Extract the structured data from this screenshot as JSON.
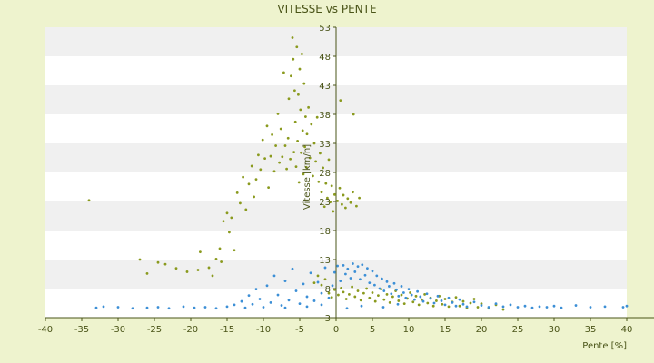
{
  "chart_data": {
    "type": "scatter",
    "title": "VITESSE vs PENTE",
    "xlabel": "Pente [%]",
    "ylabel": "Vitesse [km/h]",
    "xlim": [
      -40,
      40
    ],
    "ylim": [
      3,
      53
    ],
    "x_ticks": [
      "-40",
      "-35",
      "-30",
      "-25",
      "-20",
      "-15",
      "-10",
      "-5",
      "0",
      "5",
      "10",
      "15",
      "20",
      "25",
      "30",
      "35",
      "40"
    ],
    "y_ticks": [
      "3",
      "8",
      "13",
      "18",
      "23",
      "28",
      "33",
      "38",
      "43",
      "48",
      "53"
    ],
    "grid": "horizontal alternating bands",
    "legend": "none",
    "colors": {
      "background": "#EEF3CE",
      "plot_band_light": "#FFFFFF",
      "plot_band_dark": "#F0F0F0",
      "axis": "#4A5418",
      "series_green": "#8A9A1E",
      "series_blue": "#3C8FD6"
    },
    "series": [
      {
        "color": "#8A9A1E",
        "points": [
          [
            -34,
            23.2
          ],
          [
            -27,
            13.0
          ],
          [
            -26,
            10.6
          ],
          [
            -24.5,
            12.5
          ],
          [
            -23.5,
            12.2
          ],
          [
            -22,
            11.5
          ],
          [
            -20.5,
            10.9
          ],
          [
            -19,
            11.2
          ],
          [
            -18.7,
            14.3
          ],
          [
            -17.5,
            11.6
          ],
          [
            -17,
            10.2
          ],
          [
            -16.5,
            13.1
          ],
          [
            -16,
            14.9
          ],
          [
            -15.8,
            12.6
          ],
          [
            -15.5,
            19.6
          ],
          [
            -15,
            21.0
          ],
          [
            -14.7,
            17.7
          ],
          [
            -14.4,
            20.2
          ],
          [
            -14,
            14.6
          ],
          [
            -13.6,
            24.5
          ],
          [
            -13.2,
            22.7
          ],
          [
            -12.8,
            27.2
          ],
          [
            -12.4,
            21.6
          ],
          [
            -12,
            26.0
          ],
          [
            -11.6,
            29.1
          ],
          [
            -11.3,
            23.8
          ],
          [
            -11,
            26.8
          ],
          [
            -10.7,
            31.0
          ],
          [
            -10.4,
            28.5
          ],
          [
            -10.1,
            33.6
          ],
          [
            -9.8,
            30.4
          ],
          [
            -9.5,
            36.0
          ],
          [
            -9.3,
            25.4
          ],
          [
            -9,
            30.8
          ],
          [
            -8.8,
            34.5
          ],
          [
            -8.5,
            28.2
          ],
          [
            -8.3,
            32.6
          ],
          [
            -8,
            38.1
          ],
          [
            -7.8,
            29.7
          ],
          [
            -7.6,
            35.5
          ],
          [
            -7.4,
            30.7
          ],
          [
            -7.2,
            45.2
          ],
          [
            -7,
            32.6
          ],
          [
            -6.8,
            28.6
          ],
          [
            -6.6,
            33.9
          ],
          [
            -6.5,
            40.7
          ],
          [
            -6.3,
            30.3
          ],
          [
            -6.2,
            44.6
          ],
          [
            -6,
            51.2
          ],
          [
            -5.9,
            47.5
          ],
          [
            -5.8,
            31.5
          ],
          [
            -5.7,
            42.1
          ],
          [
            -5.6,
            36.7
          ],
          [
            -5.5,
            29.0
          ],
          [
            -5.4,
            49.6
          ],
          [
            -5.3,
            33.4
          ],
          [
            -5.2,
            41.4
          ],
          [
            -5.1,
            26.3
          ],
          [
            -5,
            45.8
          ],
          [
            -4.9,
            38.8
          ],
          [
            -4.8,
            31.4
          ],
          [
            -4.7,
            48.4
          ],
          [
            -4.6,
            35.2
          ],
          [
            -4.5,
            27.7
          ],
          [
            -4.4,
            43.3
          ],
          [
            -4.3,
            32.4
          ],
          [
            -4.2,
            37.6
          ],
          [
            -4.1,
            28.9
          ],
          [
            -4,
            34.6
          ],
          [
            -3.8,
            39.2
          ],
          [
            -3.6,
            30.5
          ],
          [
            -3.4,
            36.3
          ],
          [
            -3.2,
            27.4
          ],
          [
            -3,
            33.0
          ],
          [
            -2.8,
            29.9
          ],
          [
            -2.6,
            37.5
          ],
          [
            -2.4,
            26.4
          ],
          [
            -2.2,
            31.3
          ],
          [
            -2,
            24.6
          ],
          [
            -1.8,
            28.8
          ],
          [
            -1.6,
            22.1
          ],
          [
            -1.4,
            26.1
          ],
          [
            -1.2,
            23.6
          ],
          [
            -1,
            30.2
          ],
          [
            -0.8,
            22.9
          ],
          [
            -0.6,
            25.7
          ],
          [
            -0.4,
            21.3
          ],
          [
            -0.2,
            24.2
          ],
          [
            0.2,
            23.1
          ],
          [
            0.5,
            25.3
          ],
          [
            0.6,
            40.4
          ],
          [
            0.8,
            22.5
          ],
          [
            1,
            24.1
          ],
          [
            1.3,
            21.9
          ],
          [
            1.6,
            23.5
          ],
          [
            2,
            22.8
          ],
          [
            2.3,
            24.6
          ],
          [
            2.4,
            38.0
          ],
          [
            2.8,
            22.2
          ],
          [
            3.2,
            23.6
          ],
          [
            -1,
            7.2
          ],
          [
            -0.6,
            6.5
          ],
          [
            -0.2,
            7.8
          ],
          [
            0.3,
            6.9
          ],
          [
            0.7,
            8.1
          ],
          [
            1,
            7.4
          ],
          [
            1.4,
            6.2
          ],
          [
            1.8,
            7.0
          ],
          [
            2.2,
            8.3
          ],
          [
            2.6,
            6.6
          ],
          [
            3,
            7.6
          ],
          [
            3.4,
            6.0
          ],
          [
            3.8,
            7.2
          ],
          [
            4.2,
            8.0
          ],
          [
            4.6,
            6.4
          ],
          [
            5,
            7.3
          ],
          [
            5.4,
            5.8
          ],
          [
            5.8,
            6.8
          ],
          [
            6.2,
            7.9
          ],
          [
            6.6,
            6.1
          ],
          [
            7,
            7.0
          ],
          [
            7.4,
            5.6
          ],
          [
            7.8,
            6.6
          ],
          [
            8.2,
            7.6
          ],
          [
            8.6,
            5.9
          ],
          [
            9,
            6.9
          ],
          [
            9.4,
            5.4
          ],
          [
            9.8,
            6.3
          ],
          [
            10.2,
            7.3
          ],
          [
            10.6,
            5.7
          ],
          [
            11,
            6.7
          ],
          [
            11.4,
            5.2
          ],
          [
            11.8,
            6.1
          ],
          [
            12.2,
            7.0
          ],
          [
            12.6,
            5.5
          ],
          [
            13,
            6.4
          ],
          [
            13.4,
            5.0
          ],
          [
            13.8,
            5.9
          ],
          [
            14.2,
            6.7
          ],
          [
            14.6,
            5.3
          ],
          [
            15,
            6.2
          ],
          [
            15.5,
            4.9
          ],
          [
            16,
            5.7
          ],
          [
            16.5,
            6.5
          ],
          [
            17,
            5.0
          ],
          [
            17.5,
            5.8
          ],
          [
            18,
            4.7
          ],
          [
            18.5,
            5.5
          ],
          [
            19,
            6.2
          ],
          [
            19.5,
            4.8
          ],
          [
            20,
            5.4
          ],
          [
            21,
            4.6
          ],
          [
            22,
            5.2
          ],
          [
            23,
            4.4
          ],
          [
            -3,
            9.0
          ],
          [
            -2.5,
            10.2
          ],
          [
            -2,
            8.6
          ],
          [
            -1.5,
            9.6
          ]
        ]
      },
      {
        "color": "#3C8FD6",
        "points": [
          [
            -33,
            4.7
          ],
          [
            -32,
            4.9
          ],
          [
            -30,
            4.8
          ],
          [
            -28,
            4.6
          ],
          [
            -26,
            4.7
          ],
          [
            -24.5,
            4.8
          ],
          [
            -23,
            4.6
          ],
          [
            -21,
            4.9
          ],
          [
            -19.5,
            4.7
          ],
          [
            -18,
            4.8
          ],
          [
            -16.5,
            4.6
          ],
          [
            -15,
            4.9
          ],
          [
            -14,
            5.2
          ],
          [
            -13,
            5.8
          ],
          [
            -12.5,
            4.7
          ],
          [
            -12,
            6.8
          ],
          [
            -11.5,
            5.3
          ],
          [
            -11,
            7.9
          ],
          [
            -10.5,
            6.2
          ],
          [
            -10,
            4.8
          ],
          [
            -9.5,
            8.5
          ],
          [
            -9,
            5.6
          ],
          [
            -8.5,
            10.2
          ],
          [
            -8,
            6.9
          ],
          [
            -7.5,
            5.1
          ],
          [
            -7,
            9.3
          ],
          [
            -6.5,
            6.0
          ],
          [
            -6,
            11.4
          ],
          [
            -5.5,
            7.6
          ],
          [
            -5,
            5.4
          ],
          [
            -4.5,
            8.8
          ],
          [
            -4,
            6.6
          ],
          [
            -3.5,
            10.7
          ],
          [
            -3,
            5.9
          ],
          [
            -2.5,
            9.1
          ],
          [
            -2,
            7.2
          ],
          [
            -1.5,
            11.6
          ],
          [
            -1,
            6.4
          ],
          [
            -0.5,
            8.5
          ],
          [
            -0.2,
            10.8
          ],
          [
            0.2,
            11.9
          ],
          [
            0.6,
            9.3
          ],
          [
            1,
            12.0
          ],
          [
            1.3,
            10.5
          ],
          [
            1.6,
            11.4
          ],
          [
            2,
            9.8
          ],
          [
            2.3,
            12.3
          ],
          [
            2.6,
            10.9
          ],
          [
            3,
            11.8
          ],
          [
            3.3,
            9.6
          ],
          [
            3.6,
            12.1
          ],
          [
            4,
            10.3
          ],
          [
            4.3,
            11.5
          ],
          [
            4.6,
            9.0
          ],
          [
            5,
            11.0
          ],
          [
            5.3,
            8.6
          ],
          [
            5.6,
            10.2
          ],
          [
            6,
            8.0
          ],
          [
            6.3,
            9.7
          ],
          [
            6.6,
            7.6
          ],
          [
            7,
            9.2
          ],
          [
            7.3,
            8.4
          ],
          [
            7.6,
            7.1
          ],
          [
            8,
            8.9
          ],
          [
            8.3,
            7.8
          ],
          [
            8.6,
            6.7
          ],
          [
            9,
            8.4
          ],
          [
            9.3,
            7.3
          ],
          [
            9.6,
            6.4
          ],
          [
            10,
            7.9
          ],
          [
            10.4,
            6.9
          ],
          [
            10.8,
            6.1
          ],
          [
            11.2,
            7.5
          ],
          [
            11.6,
            6.6
          ],
          [
            12,
            5.8
          ],
          [
            12.5,
            7.1
          ],
          [
            13,
            6.3
          ],
          [
            13.5,
            5.5
          ],
          [
            14,
            6.7
          ],
          [
            14.5,
            5.9
          ],
          [
            15,
            5.2
          ],
          [
            15.5,
            6.4
          ],
          [
            16,
            5.6
          ],
          [
            16.5,
            5.0
          ],
          [
            17,
            6.1
          ],
          [
            17.5,
            5.3
          ],
          [
            18,
            4.9
          ],
          [
            19,
            5.7
          ],
          [
            20,
            5.1
          ],
          [
            21,
            4.8
          ],
          [
            22,
            5.4
          ],
          [
            23,
            4.9
          ],
          [
            24,
            5.2
          ],
          [
            25,
            4.8
          ],
          [
            26,
            5.0
          ],
          [
            27,
            4.7
          ],
          [
            28,
            4.9
          ],
          [
            29,
            4.8
          ],
          [
            30,
            5.0
          ],
          [
            31,
            4.7
          ],
          [
            33,
            5.1
          ],
          [
            35,
            4.8
          ],
          [
            37,
            4.9
          ],
          [
            39.5,
            4.8
          ],
          [
            40,
            5.0
          ],
          [
            1.5,
            4.6
          ],
          [
            3.5,
            5.0
          ],
          [
            6.5,
            4.8
          ],
          [
            8.5,
            5.3
          ],
          [
            -4,
            4.9
          ],
          [
            -7,
            4.7
          ],
          [
            -2,
            5.2
          ]
        ]
      }
    ]
  }
}
